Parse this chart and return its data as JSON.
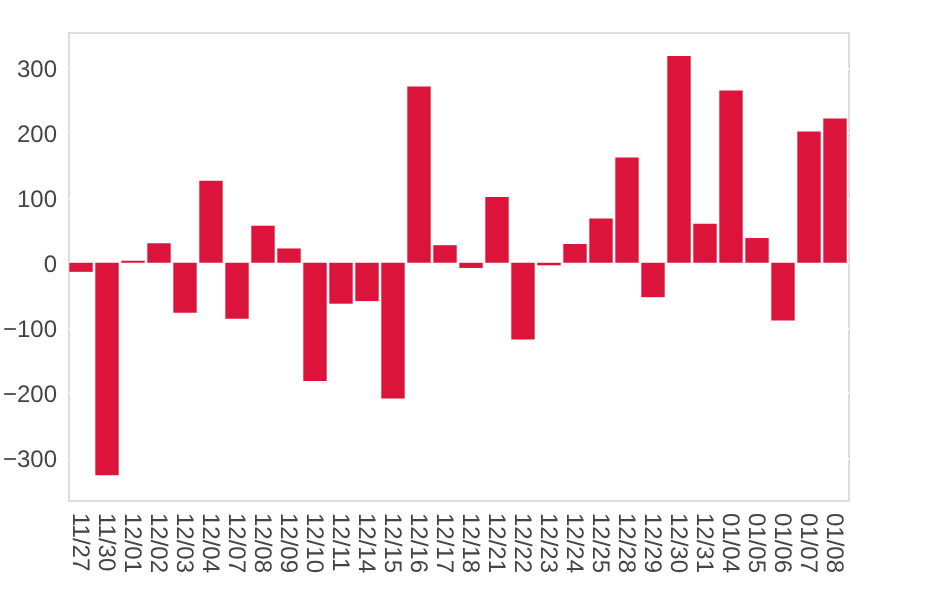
{
  "chart_data": {
    "type": "bar",
    "categories": [
      "11/27",
      "11/30",
      "12/01",
      "12/02",
      "12/03",
      "12/04",
      "12/07",
      "12/08",
      "12/09",
      "12/10",
      "12/11",
      "12/14",
      "12/15",
      "12/16",
      "12/17",
      "12/18",
      "12/21",
      "12/22",
      "12/23",
      "12/24",
      "12/25",
      "12/28",
      "12/29",
      "12/30",
      "12/31",
      "01/04",
      "01/05",
      "01/06",
      "01/07",
      "01/08"
    ],
    "values": [
      -14,
      -327,
      3,
      30,
      -77,
      126,
      -86,
      57,
      22,
      -182,
      -63,
      -59,
      -209,
      271,
      27,
      -8,
      101,
      -118,
      -4,
      29,
      68,
      162,
      -53,
      318,
      60,
      265,
      38,
      -89,
      202,
      222
    ],
    "color": "#dc143c",
    "ylim": [
      -365,
      355
    ],
    "yticks": [
      -300,
      -200,
      -100,
      0,
      100,
      200,
      300
    ],
    "grid": "y"
  }
}
